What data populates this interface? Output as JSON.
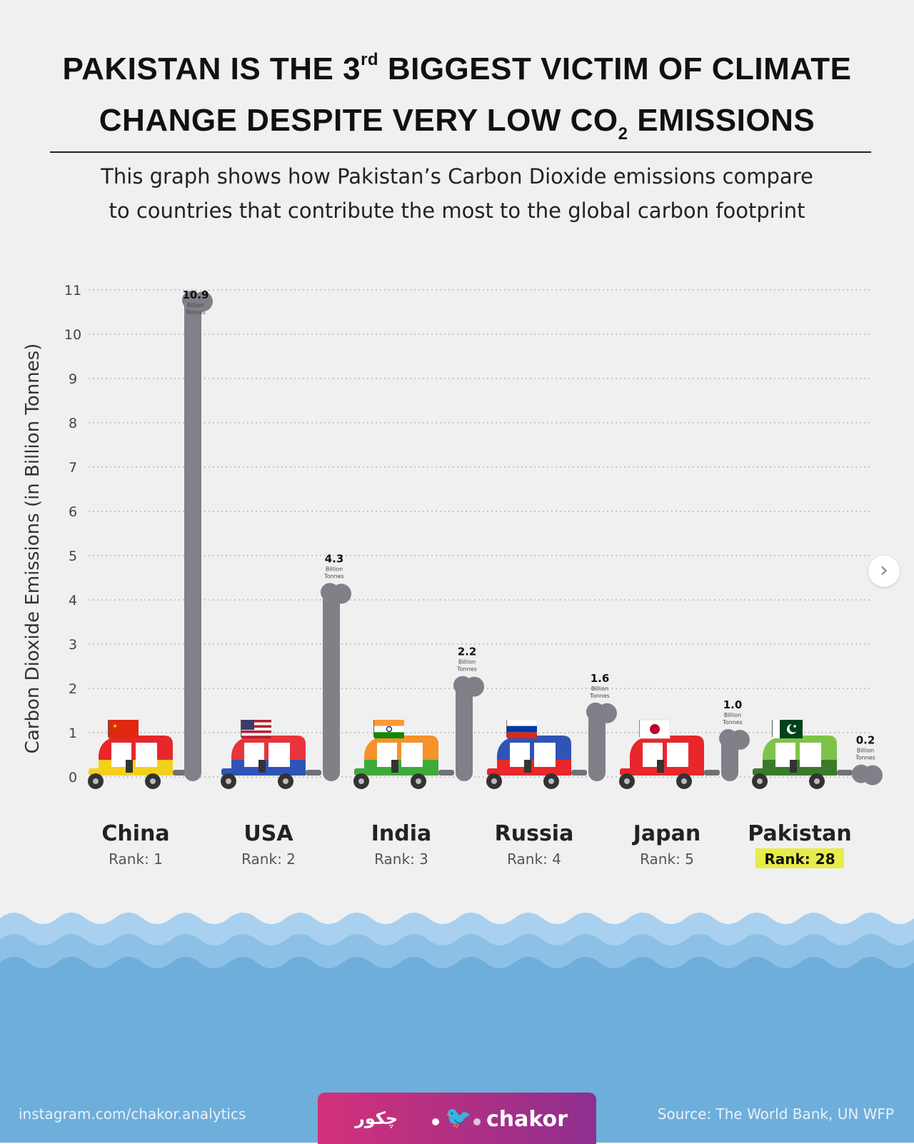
{
  "title": {
    "line1_pre": "PAKISTAN IS THE 3",
    "line1_sup": "rd",
    "line1_post": " BIGGEST VICTIM OF CLIMATE",
    "line2_pre": "CHANGE DESPITE VERY LOW CO",
    "line2_sub": "2",
    "line2_post": " EMISSIONS"
  },
  "subtitle": {
    "line1": "This graph shows how Pakistan’s Carbon Dioxide emissions compare",
    "line2": "to countries that contribute the most to the global carbon footprint"
  },
  "chart_data": {
    "type": "bar",
    "title": "PAKISTAN IS THE 3rd BIGGEST VICTIM OF CLIMATE CHANGE DESPITE VERY LOW CO2 EMISSIONS",
    "ylabel": "Carbon Dioxide Emissions (in Billion Tonnes)",
    "xlabel": "",
    "ylim": [
      0,
      11
    ],
    "yticks": [
      "0",
      "1",
      "2",
      "3",
      "4",
      "5",
      "6",
      "7",
      "8",
      "9",
      "10",
      "11"
    ],
    "grid": true,
    "value_unit_line1": "Billion",
    "value_unit_line2": "Tonnes",
    "categories": [
      "China",
      "USA",
      "India",
      "Russia",
      "Japan",
      "Pakistan"
    ],
    "values": [
      10.9,
      4.3,
      2.2,
      1.6,
      1.0,
      0.2
    ],
    "value_labels": [
      "10.9",
      "4.3",
      "2.2",
      "1.6",
      "1.0",
      "0.2"
    ],
    "ranks": [
      "Rank: 1",
      "Rank: 2",
      "Rank: 3",
      "Rank: 4",
      "Rank: 5",
      "Rank: 28"
    ],
    "highlight_index": 5,
    "flags": [
      "china-flag",
      "usa-flag",
      "india-flag",
      "russia-flag",
      "japan-flag",
      "pakistan-flag"
    ]
  },
  "colors": {
    "smoke": "#808088",
    "grid": "#b8b8b8",
    "highlight": "#e8ec4a",
    "water_light": "#a9d0ee",
    "water_dark": "#6eaedb"
  },
  "nav": {
    "next_symbol": "›"
  },
  "footer": {
    "handle": "instagram.com/chakor.analytics",
    "source": "Source: The World Bank, UN WFP",
    "brand_urdu": "چکور",
    "brand_name": "chakor"
  }
}
